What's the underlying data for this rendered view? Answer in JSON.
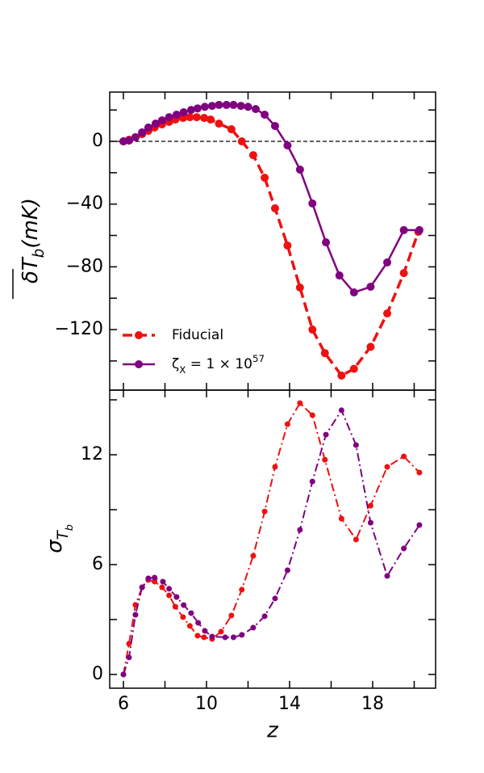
{
  "chart_data": [
    {
      "type": "line",
      "ylabel": "δT_b(mK)",
      "xlim": [
        5.34,
        21.03
      ],
      "xticks": [
        6,
        10,
        14,
        18
      ],
      "xminorticks": [
        8,
        12,
        16,
        20
      ],
      "ylim": [
        -158.6,
        31.4
      ],
      "yticks": [
        {
          "value": 0,
          "label": "0"
        },
        {
          "value": -40,
          "label": "−40"
        },
        {
          "value": -80,
          "label": "−80"
        },
        {
          "value": -120,
          "label": "−120"
        }
      ],
      "yminorticks": [
        20,
        -20,
        -60,
        -100,
        -140
      ],
      "hline": 0,
      "legend": "lower left",
      "series": [
        {
          "name": "Fiducial",
          "color": "#ee1111",
          "style": "dashed",
          "x": [
            6,
            6.27,
            6.58,
            6.9,
            7.2,
            7.5,
            7.86,
            8.2,
            8.5,
            8.87,
            9.2,
            9.53,
            9.89,
            10.2,
            10.6,
            11.2,
            11.7,
            12.25,
            12.8,
            13.3,
            13.9,
            14.5,
            15.1,
            15.7,
            16.5,
            17.1,
            17.9,
            18.7,
            19.5,
            20.2
          ],
          "values": [
            0,
            1,
            2.6,
            4.6,
            6.7,
            8.8,
            10.8,
            12.4,
            13.9,
            14.9,
            15.4,
            15.4,
            14.9,
            13.9,
            11.3,
            7.7,
            0,
            -8.8,
            -23.2,
            -42.7,
            -66.4,
            -93.2,
            -120,
            -135,
            -149.3,
            -145,
            -131,
            -109.7,
            -84,
            -57.7
          ]
        },
        {
          "name": "ζ_X = 1 × 10^{57}",
          "color": "#800080",
          "style": "solid",
          "x": [
            6,
            6.27,
            6.58,
            6.9,
            7.2,
            7.55,
            7.86,
            8.2,
            8.56,
            8.9,
            9.26,
            9.57,
            9.92,
            10.27,
            10.6,
            10.96,
            11.3,
            11.66,
            12,
            12.37,
            12.8,
            13.3,
            13.9,
            14.5,
            15.1,
            15.75,
            16.4,
            17.1,
            17.9,
            18.7,
            19.5,
            20.25
          ],
          "values": [
            0,
            0.5,
            2.6,
            5.7,
            8.8,
            11.3,
            13.4,
            15.4,
            17,
            18.5,
            20,
            21,
            22,
            22.6,
            23.2,
            23.2,
            23.2,
            22.6,
            22,
            20.6,
            17,
            9.8,
            -2.6,
            -18,
            -39.6,
            -64.4,
            -85.5,
            -96.3,
            -92.7,
            -77.2,
            -56.6,
            -56.6
          ]
        }
      ]
    },
    {
      "type": "line",
      "ylabel": "σ_{T_b}",
      "xlabel": "z",
      "xlim": [
        5.34,
        21.03
      ],
      "xticks": [
        6,
        10,
        14,
        18
      ],
      "xminorticks": [
        8,
        12,
        16,
        20
      ],
      "ylim": [
        -0.75,
        15.53
      ],
      "yticks": [
        0,
        6,
        12
      ],
      "yminorticks": [
        3,
        9,
        15
      ],
      "series": [
        {
          "color": "#ee1111",
          "style": "dashdot",
          "x": [
            6,
            6.27,
            6.58,
            6.9,
            7.2,
            7.5,
            7.86,
            8.2,
            8.5,
            8.87,
            9.2,
            9.57,
            9.88,
            10.27,
            10.7,
            11.2,
            11.7,
            12.25,
            12.8,
            13.3,
            13.9,
            14.5,
            15.1,
            15.7,
            16.5,
            17.2,
            17.9,
            18.7,
            19.5,
            20.25
          ],
          "values": [
            0,
            1.68,
            3.8,
            4.76,
            5.16,
            5.07,
            4.76,
            4.32,
            3.7,
            3.13,
            2.65,
            2.12,
            2.03,
            1.94,
            2.34,
            3.22,
            4.63,
            6.48,
            8.9,
            11.34,
            13.67,
            14.82,
            14.16,
            11.73,
            8.51,
            7.37,
            9.22,
            11.34,
            11.91,
            11.03
          ]
        },
        {
          "color": "#800080",
          "style": "dashdot",
          "x": [
            6,
            6.27,
            6.58,
            6.9,
            7.2,
            7.5,
            7.9,
            8.2,
            8.56,
            8.9,
            9.26,
            9.6,
            9.92,
            10.27,
            10.9,
            11.3,
            11.7,
            12.25,
            12.8,
            13.3,
            13.9,
            14.5,
            15.1,
            15.75,
            16.5,
            17.2,
            17.9,
            18.7,
            19.5,
            20.25
          ],
          "values": [
            0,
            0.93,
            3.26,
            4.76,
            5.25,
            5.29,
            5.07,
            4.68,
            4.23,
            3.79,
            3.35,
            2.82,
            2.38,
            2.07,
            2.03,
            2.03,
            2.16,
            2.56,
            3.18,
            4.15,
            5.69,
            7.9,
            10.54,
            13.1,
            14.43,
            12.53,
            8.29,
            5.38,
            6.88,
            8.16
          ]
        }
      ]
    }
  ]
}
